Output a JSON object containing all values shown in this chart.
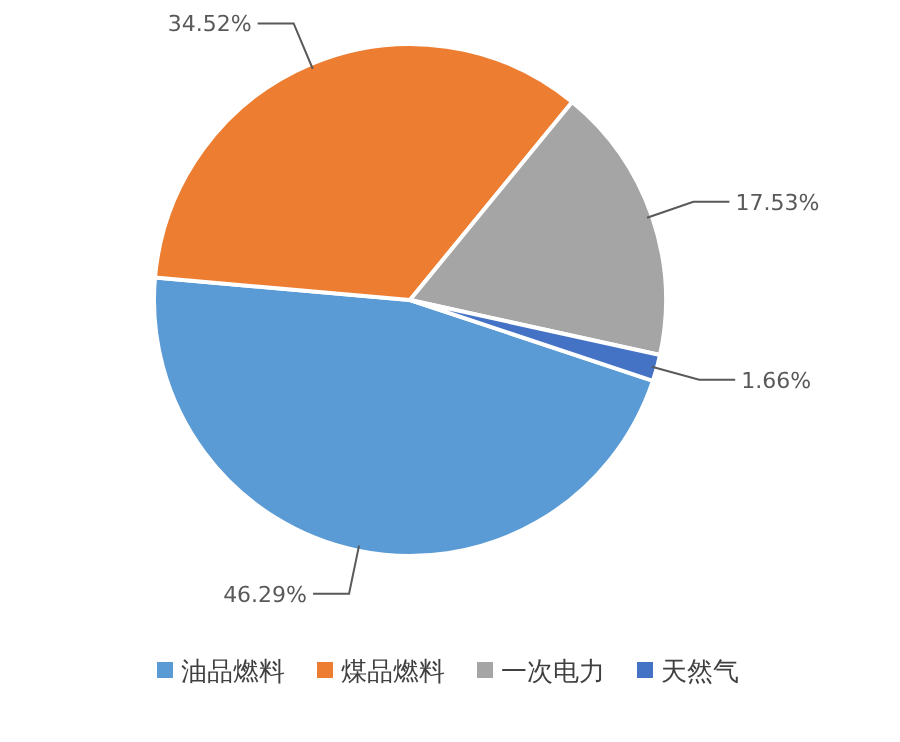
{
  "chart_data": {
    "type": "pie",
    "categories": [
      "油品燃料",
      "煤品燃料",
      "一次电力",
      "天然气"
    ],
    "values": [
      46.29,
      34.52,
      17.53,
      1.66
    ],
    "value_labels": [
      "46.29%",
      "34.52%",
      "17.53%",
      "1.66%"
    ],
    "colors": [
      "#5b9bd5",
      "#ed7d31",
      "#a5a5a5",
      "#4472c4"
    ],
    "legend": "bottom"
  }
}
